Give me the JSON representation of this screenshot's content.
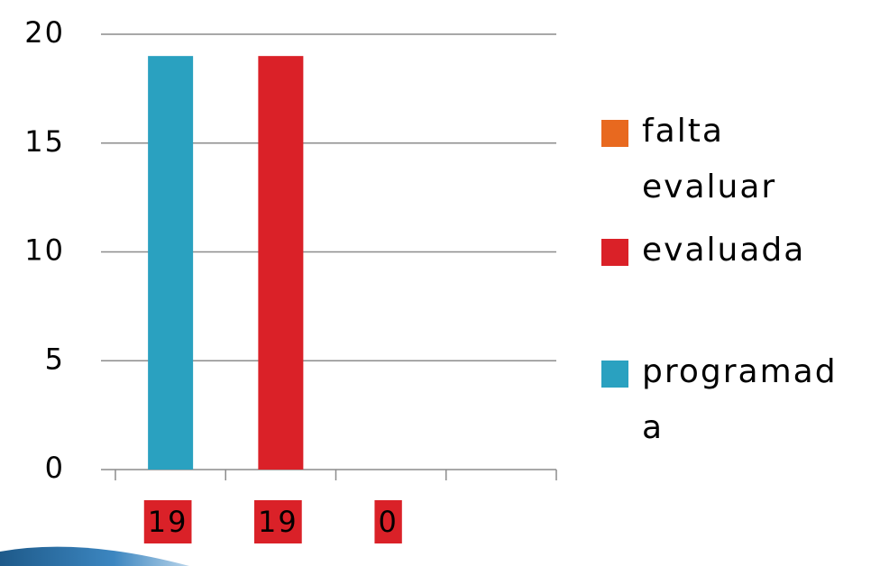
{
  "chart_data": {
    "type": "bar",
    "categories": [
      "19",
      "19",
      "0",
      null
    ],
    "series": [
      {
        "name": "falta evaluar",
        "color": "#e8691f",
        "values": [
          null,
          null,
          0,
          null
        ]
      },
      {
        "name": "evaluada",
        "color": "#da2128",
        "values": [
          null,
          19,
          null,
          null
        ]
      },
      {
        "name": "programada",
        "color": "#2aa1c0",
        "values": [
          19,
          null,
          null,
          null
        ]
      }
    ],
    "category_label_color": "#da2128",
    "ylim": [
      0,
      20
    ],
    "yticks": [
      0,
      5,
      10,
      15,
      20
    ],
    "grid": true
  }
}
